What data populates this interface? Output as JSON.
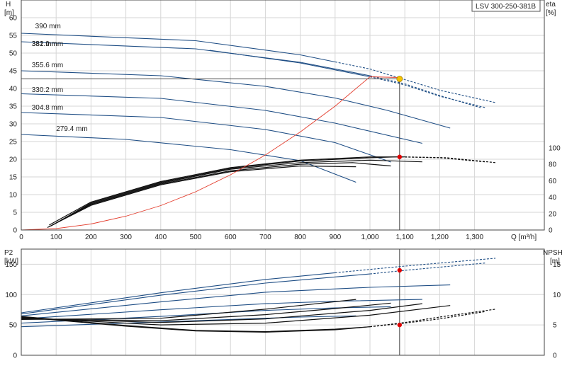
{
  "model_label": "LSV 300-250-381B",
  "colors": {
    "curve": "#1f4e85",
    "efficiency": "#111111",
    "system_curve": "#e33b2b",
    "marker_red": "#e00000",
    "marker_yellow": "#f5c400",
    "operating_line": "#444444"
  },
  "chart_data": [
    {
      "type": "line",
      "name": "head",
      "xlabel": "Q [m³/h]",
      "ylabel_left": [
        "H",
        "[m]"
      ],
      "ylabel_right": [
        "eta",
        "[%]"
      ],
      "x_ticks": [
        "0",
        "100",
        "200",
        "300",
        "400",
        "500",
        "600",
        "700",
        "800",
        "900",
        "1,000",
        "1,100",
        "1,200",
        "1,300"
      ],
      "y_ticks_left": [
        "0",
        "5",
        "10",
        "15",
        "20",
        "25",
        "30",
        "35",
        "40",
        "45",
        "50",
        "55",
        "60"
      ],
      "y_ticks_right": [
        "0",
        "20",
        "40",
        "60",
        "80",
        "100"
      ],
      "xlim": [
        0,
        1500
      ],
      "ylim_left": [
        0,
        65
      ],
      "ylim_right": [
        0,
        280
      ],
      "grid": true,
      "curve_labels": [
        {
          "text": "390 mm",
          "x": 40,
          "y": 57
        },
        {
          "text": "381 mm",
          "x": 30,
          "y": 52
        },
        {
          "text": "382.9 mm",
          "x": 30,
          "y": 52
        },
        {
          "text": "355.6 mm",
          "x": 30,
          "y": 46
        },
        {
          "text": "330.2 mm",
          "x": 30,
          "y": 39
        },
        {
          "text": "304.8 mm",
          "x": 30,
          "y": 34
        },
        {
          "text": "279.4 mm",
          "x": 100,
          "y": 28
        }
      ],
      "head_curves": [
        {
          "solid": [
            [
              0,
              55.6
            ],
            [
              500,
              53.5
            ],
            [
              800,
              49.5
            ],
            [
              900,
              47.5
            ]
          ],
          "dashed": [
            [
              900,
              47.5
            ],
            [
              1000,
              45.5
            ],
            [
              1100,
              42.5
            ],
            [
              1200,
              39.5
            ],
            [
              1360,
              36
            ]
          ]
        },
        {
          "solid": [
            [
              0,
              53.2
            ],
            [
              500,
              51.2
            ],
            [
              800,
              47.4
            ],
            [
              1000,
              43.6
            ]
          ],
          "dashed": [
            [
              1000,
              43.6
            ],
            [
              1100,
              41.3
            ],
            [
              1200,
              38
            ],
            [
              1320,
              34.5
            ]
          ]
        },
        {
          "solid": [
            [
              540,
              50.8
            ],
            [
              800,
              47.2
            ],
            [
              1000,
              43.3
            ]
          ],
          "dashed": [
            [
              1000,
              43.3
            ],
            [
              1100,
              41
            ],
            [
              1200,
              37.8
            ],
            [
              1330,
              34.6
            ]
          ]
        },
        {
          "solid": [
            [
              0,
              45
            ],
            [
              400,
              43.6
            ],
            [
              700,
              40.6
            ],
            [
              900,
              37.3
            ],
            [
              1050,
              33.8
            ],
            [
              1230,
              28.8
            ]
          ],
          "dashed": []
        },
        {
          "solid": [
            [
              0,
              38.5
            ],
            [
              400,
              37.2
            ],
            [
              700,
              33.8
            ],
            [
              900,
              30.2
            ],
            [
              1150,
              24.5
            ]
          ],
          "dashed": []
        },
        {
          "solid": [
            [
              0,
              33.2
            ],
            [
              400,
              31.8
            ],
            [
              700,
              28.4
            ],
            [
              900,
              24.7
            ],
            [
              1060,
              19.2
            ]
          ],
          "dashed": []
        },
        {
          "solid": [
            [
              0,
              27
            ],
            [
              300,
              25.6
            ],
            [
              600,
              22.7
            ],
            [
              800,
              19.6
            ],
            [
              960,
              13.5
            ]
          ],
          "dashed": []
        }
      ],
      "efficiency_curves": [
        {
          "solid": [
            [
              80,
              6
            ],
            [
              200,
              34
            ],
            [
              400,
              59
            ],
            [
              600,
              76
            ],
            [
              800,
              85
            ],
            [
              1000,
              89
            ],
            [
              1100,
              89
            ]
          ],
          "dashed": [
            [
              1100,
              89
            ],
            [
              1220,
              88
            ],
            [
              1360,
              82
            ]
          ]
        },
        {
          "solid": [
            [
              90,
              6
            ],
            [
              200,
              33
            ],
            [
              400,
              58
            ],
            [
              600,
              75
            ],
            [
              800,
              84
            ],
            [
              1000,
              88
            ],
            [
              1080,
              89
            ]
          ],
          "dashed": [
            [
              1080,
              89
            ],
            [
              1200,
              88
            ],
            [
              1330,
              83
            ]
          ]
        },
        {
          "solid": [
            [
              85,
              5
            ],
            [
              200,
              32
            ],
            [
              400,
              57
            ],
            [
              600,
              74
            ],
            [
              800,
              82
            ],
            [
              1000,
              85
            ],
            [
              1150,
              83
            ]
          ],
          "dashed": []
        },
        {
          "solid": [
            [
              80,
              4
            ],
            [
              200,
              31
            ],
            [
              400,
              56
            ],
            [
              600,
              72
            ],
            [
              800,
              80
            ],
            [
              950,
              82
            ],
            [
              1060,
              78
            ]
          ],
          "dashed": []
        },
        {
          "solid": [
            [
              75,
              3
            ],
            [
              200,
              30
            ],
            [
              400,
              55
            ],
            [
              600,
              71
            ],
            [
              800,
              78
            ],
            [
              960,
              77
            ]
          ],
          "dashed": []
        }
      ],
      "system_curve": [
        [
          0,
          0
        ],
        [
          100,
          0.4
        ],
        [
          200,
          1.7
        ],
        [
          300,
          3.9
        ],
        [
          400,
          6.9
        ],
        [
          500,
          10.8
        ],
        [
          600,
          15.6
        ],
        [
          700,
          21.2
        ],
        [
          800,
          27.7
        ],
        [
          900,
          35
        ],
        [
          1000,
          43.3
        ],
        [
          1085,
          43.1
        ]
      ],
      "operating_point": {
        "q": 1085,
        "h": 42.7
      },
      "efficiency_point": {
        "q": 1085,
        "eta": 89
      }
    },
    {
      "type": "line",
      "name": "power_npsh",
      "ylabel_left": [
        "P2",
        "[kW]"
      ],
      "ylabel_right": [
        "NPSH",
        "[m]"
      ],
      "y_ticks_left": [
        "0",
        "50",
        "100",
        "150"
      ],
      "y_ticks_right": [
        "0",
        "5",
        "10",
        "15"
      ],
      "xlim": [
        0,
        1500
      ],
      "ylim_left": [
        0,
        175
      ],
      "ylim_right": [
        0,
        17.5
      ],
      "grid": true,
      "power_curves": [
        {
          "solid": [
            [
              0,
              70
            ],
            [
              400,
              103
            ],
            [
              700,
              125
            ],
            [
              900,
              136
            ]
          ],
          "dashed": [
            [
              900,
              136
            ],
            [
              1100,
              147
            ],
            [
              1360,
              160
            ]
          ]
        },
        {
          "solid": [
            [
              0,
              68
            ],
            [
              400,
              99
            ],
            [
              700,
              119
            ],
            [
              1000,
              134
            ]
          ],
          "dashed": [
            [
              1000,
              134
            ],
            [
              1100,
              140
            ],
            [
              1330,
              152
            ]
          ]
        },
        {
          "solid": [
            [
              0,
              65
            ],
            [
              400,
              88
            ],
            [
              700,
              104
            ],
            [
              1000,
              112
            ],
            [
              1230,
              116
            ]
          ],
          "dashed": []
        },
        {
          "solid": [
            [
              0,
              60
            ],
            [
              400,
              75
            ],
            [
              700,
              85
            ],
            [
              900,
              89
            ],
            [
              1150,
              92
            ]
          ],
          "dashed": []
        },
        {
          "solid": [
            [
              0,
              53
            ],
            [
              400,
              64
            ],
            [
              700,
              74
            ],
            [
              900,
              78
            ],
            [
              1060,
              80
            ]
          ],
          "dashed": []
        },
        {
          "solid": [
            [
              0,
              47
            ],
            [
              400,
              55
            ],
            [
              700,
              61
            ],
            [
              800,
              63
            ],
            [
              960,
              65
            ]
          ],
          "dashed": []
        }
      ],
      "npsh_curves": [
        {
          "solid": [
            [
              0,
              6.3
            ],
            [
              300,
              4.8
            ],
            [
              500,
              4.0
            ],
            [
              700,
              3.8
            ],
            [
              900,
              4.2
            ],
            [
              1000,
              4.7
            ]
          ],
          "dashed": [
            [
              1000,
              4.7
            ],
            [
              1100,
              5.4
            ],
            [
              1200,
              6.3
            ],
            [
              1360,
              7.6
            ]
          ]
        },
        {
          "solid": [
            [
              0,
              6.4
            ],
            [
              300,
              4.9
            ],
            [
              500,
              4.1
            ],
            [
              700,
              3.9
            ],
            [
              900,
              4.3
            ],
            [
              1000,
              4.7
            ]
          ],
          "dashed": [
            [
              1000,
              4.7
            ],
            [
              1100,
              5.3
            ],
            [
              1200,
              6.0
            ],
            [
              1330,
              7.2
            ]
          ]
        },
        {
          "solid": [
            [
              0,
              6.2
            ],
            [
              400,
              5.0
            ],
            [
              700,
              5.3
            ],
            [
              1000,
              6.6
            ],
            [
              1230,
              8.2
            ]
          ],
          "dashed": []
        },
        {
          "solid": [
            [
              0,
              6.1
            ],
            [
              400,
              5.4
            ],
            [
              700,
              6.0
            ],
            [
              1000,
              7.4
            ],
            [
              1150,
              8.5
            ]
          ],
          "dashed": []
        },
        {
          "solid": [
            [
              0,
              6.0
            ],
            [
              400,
              5.7
            ],
            [
              700,
              6.7
            ],
            [
              900,
              7.7
            ],
            [
              1060,
              8.6
            ]
          ],
          "dashed": []
        },
        {
          "solid": [
            [
              0,
              5.9
            ],
            [
              400,
              6.1
            ],
            [
              700,
              7.6
            ],
            [
              960,
              9.2
            ]
          ],
          "dashed": []
        }
      ],
      "power_point": {
        "q": 1085,
        "p": 140
      },
      "npsh_point": {
        "q": 1085,
        "npsh": 5.0
      }
    }
  ]
}
